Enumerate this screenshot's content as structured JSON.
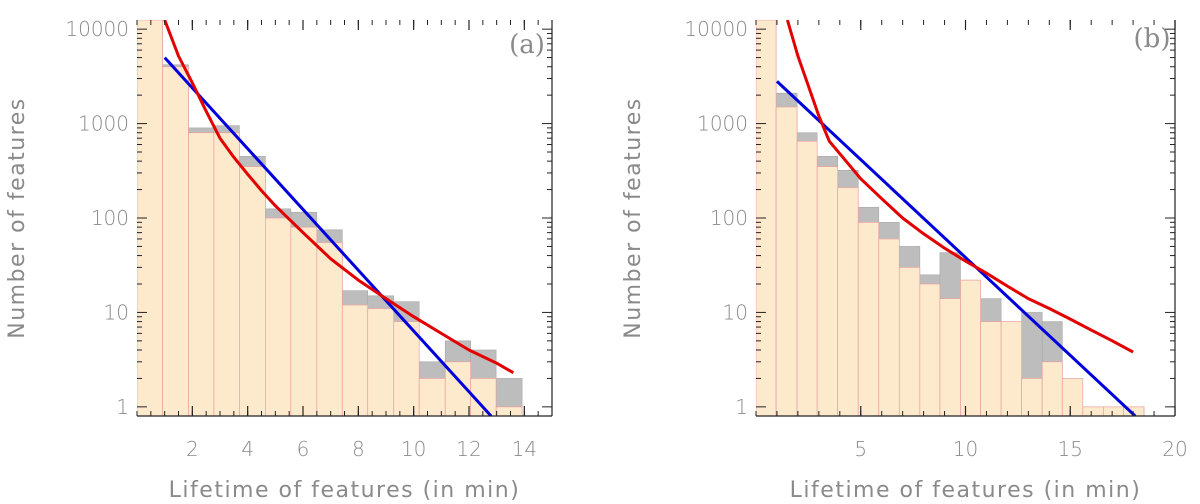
{
  "chart_data": [
    {
      "type": "bar",
      "panel_label": "(a)",
      "xlabel": "Lifetime of features (in min)",
      "ylabel": "Number of features",
      "yscale": "log",
      "xlim": [
        0.0,
        15.0
      ],
      "ylim": [
        0.8,
        12500
      ],
      "x_ticks": [
        2,
        4,
        6,
        8,
        10,
        12,
        14
      ],
      "x_tick_labels": [
        "2",
        "4",
        "6",
        "8",
        "10",
        "12",
        "14"
      ],
      "y_ticks": [
        1,
        10,
        100,
        1000,
        10000
      ],
      "y_tick_labels": [
        "1",
        "10",
        "100",
        "1000",
        "10000"
      ],
      "bin_edges": [
        0.0,
        0.92,
        1.86,
        2.78,
        3.7,
        4.64,
        5.56,
        6.5,
        7.42,
        8.34,
        9.28,
        10.2,
        11.14,
        12.06,
        12.98,
        13.92
      ],
      "series": [
        {
          "name": "histogram (light)",
          "color": "#fde9cc",
          "values": [
            13000,
            4000,
            800,
            800,
            350,
            100,
            80,
            55,
            12,
            11,
            8,
            2,
            3,
            2,
            1
          ]
        },
        {
          "name": "histogram (gray)",
          "color": "#bdbdbd",
          "values": [
            13000,
            4200,
            900,
            950,
            450,
            125,
            115,
            75,
            17,
            15,
            13,
            3,
            5,
            4,
            2
          ]
        }
      ],
      "fits": [
        {
          "name": "exponential fit",
          "color": "#0000dd",
          "x": [
            1.0,
            12.8
          ],
          "y": [
            5000,
            0.8
          ]
        },
        {
          "name": "power-law fit",
          "color": "#e20000",
          "x": [
            1.0,
            1.5,
            2.0,
            2.5,
            3.0,
            3.5,
            4.0,
            4.5,
            5.0,
            6.0,
            7.0,
            8.0,
            9.0,
            10.0,
            11.0,
            12.0,
            13.0,
            13.6
          ],
          "y": [
            12500,
            5200,
            2700,
            1350,
            700,
            440,
            290,
            195,
            135,
            70,
            37,
            22,
            14,
            9,
            6,
            4,
            2.9,
            2.3
          ]
        }
      ]
    },
    {
      "type": "bar",
      "panel_label": "(b)",
      "xlabel": "Lifetime of features (in min)",
      "ylabel": "Number of features",
      "yscale": "log",
      "xlim": [
        0.0,
        20.0
      ],
      "ylim": [
        0.8,
        12500
      ],
      "x_ticks": [
        5,
        10,
        15,
        20
      ],
      "x_tick_labels": [
        "5",
        "10",
        "15",
        "20"
      ],
      "y_ticks": [
        1,
        10,
        100,
        1000,
        10000
      ],
      "y_tick_labels": [
        "1",
        "10",
        "100",
        "1000",
        "10000"
      ],
      "bin_edges": [
        0.0,
        0.96,
        1.96,
        2.92,
        3.9,
        4.88,
        5.86,
        6.84,
        7.82,
        8.78,
        9.76,
        10.72,
        11.7,
        12.68,
        13.66,
        14.62,
        15.6,
        16.58,
        17.54,
        18.52
      ],
      "series": [
        {
          "name": "histogram (light)",
          "color": "#fde9cc",
          "values": [
            13000,
            1500,
            650,
            350,
            210,
            90,
            60,
            30,
            20,
            14,
            22,
            8,
            8,
            2,
            3,
            2,
            1,
            1,
            1
          ]
        },
        {
          "name": "histogram (gray)",
          "color": "#bdbdbd",
          "values": [
            13000,
            2100,
            800,
            450,
            320,
            130,
            90,
            50,
            25,
            43,
            17,
            14,
            6,
            10,
            8,
            1,
            1,
            1,
            1
          ]
        }
      ],
      "fits": [
        {
          "name": "exponential fit",
          "color": "#0000dd",
          "x": [
            1.0,
            18.1
          ],
          "y": [
            2800,
            0.8
          ]
        },
        {
          "name": "power-law fit",
          "color": "#e20000",
          "x": [
            1.5,
            2.0,
            2.5,
            3.0,
            3.5,
            4.0,
            5.0,
            6.0,
            7.0,
            8.0,
            9.0,
            10.0,
            11.0,
            12.0,
            13.0,
            14.0,
            15.0,
            16.0,
            17.0,
            18.0
          ],
          "y": [
            12500,
            5200,
            2500,
            1200,
            650,
            480,
            260,
            160,
            100,
            68,
            48,
            35,
            26,
            19,
            14,
            11,
            8.5,
            6.5,
            5,
            3.8
          ]
        }
      ]
    }
  ]
}
